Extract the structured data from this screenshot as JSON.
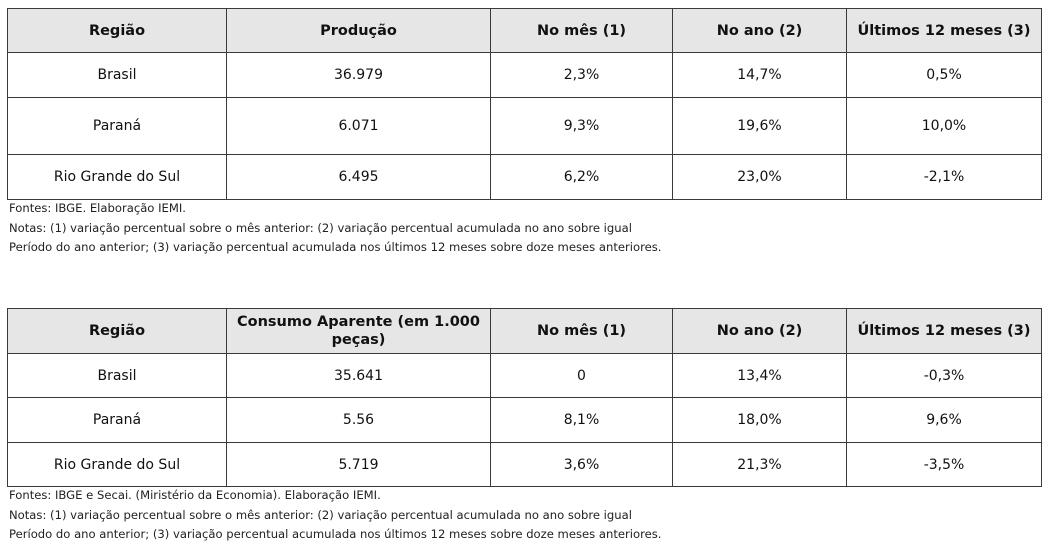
{
  "table1": {
    "headers": [
      "Região",
      "Produção",
      "No mês (1)",
      "No ano (2)",
      "Últimos 12 meses (3)"
    ],
    "rows": [
      [
        "Brasil",
        "36.979",
        "2,3%",
        "14,7%",
        "0,5%"
      ],
      [
        "Paraná",
        "6.071",
        "9,3%",
        "19,6%",
        "10,0%"
      ],
      [
        "Rio Grande do Sul",
        "6.495",
        "6,2%",
        "23,0%",
        "-2,1%"
      ]
    ],
    "notes": [
      "Fontes: IBGE. Elaboração IEMI.",
      "Notas: (1) variação percentual sobre o mês anterior: (2) variação percentual acumulada no ano sobre igual",
      "Período do ano anterior; (3) variação percentual acumulada nos últimos 12 meses sobre doze meses anteriores."
    ]
  },
  "table2": {
    "headers": [
      "Região",
      "Consumo Aparente (em 1.000 peças)",
      "No mês (1)",
      "No ano (2)",
      "Últimos 12 meses (3)"
    ],
    "rows": [
      [
        "Brasil",
        "35.641",
        "0",
        "13,4%",
        "-0,3%"
      ],
      [
        "Paraná",
        "5.56",
        "8,1%",
        "18,0%",
        "9,6%"
      ],
      [
        "Rio Grande do Sul",
        "5.719",
        "3,6%",
        "21,3%",
        "-3,5%"
      ]
    ],
    "notes": [
      "Fontes: IBGE e Secai. (Miristério da Economia). Elaboração IEMI.",
      "Notas: (1) variação percentual sobre o mês anterior: (2) variação percentual acumulada no ano sobre igual",
      "Período do ano anterior; (3) variação percentual acumulada nos últimos 12 meses sobre doze meses anteriores."
    ]
  }
}
